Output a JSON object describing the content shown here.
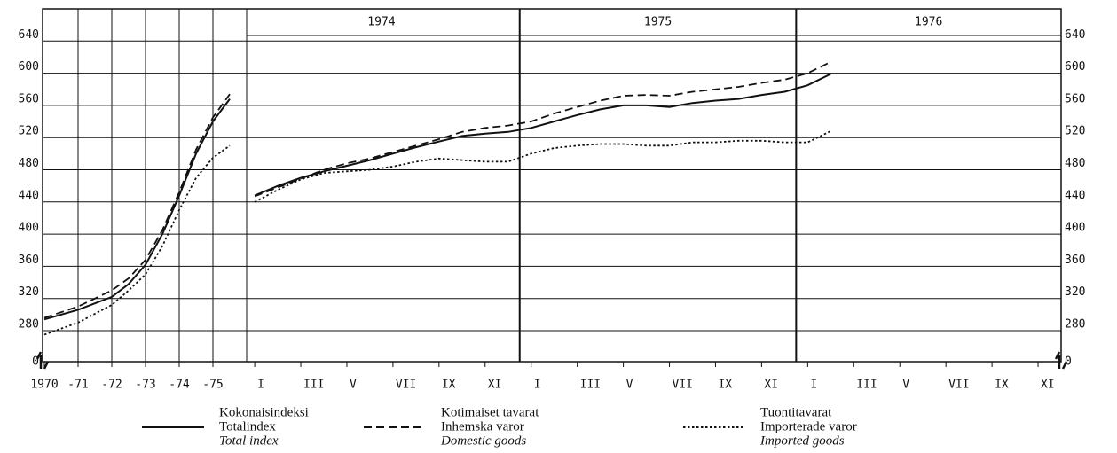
{
  "legend": [
    [
      "Kokonaisindeksi",
      "Totalindex",
      "Total index"
    ],
    [
      "Kotimaiset tavarat",
      "Inhemska varor",
      "Domestic goods"
    ],
    [
      "Tuontitavarat",
      "Importerade varor",
      "Imported goods"
    ]
  ],
  "chart_data": [
    {
      "type": "line",
      "x": [
        1970,
        1971,
        1972,
        1972.5,
        1973,
        1973.5,
        1974,
        1974.5,
        1975,
        1975.5
      ],
      "xlim": [
        1970,
        1976
      ],
      "xticks": [
        {
          "value": 1970,
          "label": "1970"
        },
        {
          "value": 1971,
          "label": "-71"
        },
        {
          "value": 1972,
          "label": "-72"
        },
        {
          "value": 1973,
          "label": "-73"
        },
        {
          "value": 1974,
          "label": "-74"
        },
        {
          "value": 1975,
          "label": "-75"
        }
      ],
      "ylim": [
        280,
        680
      ],
      "yticks": [
        280,
        320,
        360,
        400,
        440,
        480,
        520,
        560,
        600,
        640
      ],
      "ybreak": 0,
      "series": [
        {
          "style": "solid",
          "color": "#111",
          "values": [
            294,
            306,
            322,
            338,
            362,
            400,
            448,
            500,
            540,
            568
          ]
        },
        {
          "style": "dashed",
          "color": "#111",
          "values": [
            296,
            310,
            330,
            345,
            368,
            405,
            452,
            505,
            545,
            574
          ]
        },
        {
          "style": "dotted",
          "color": "#111",
          "values": [
            275,
            290,
            312,
            330,
            350,
            385,
            430,
            470,
            495,
            510
          ]
        }
      ]
    },
    {
      "type": "line",
      "year_labels": [
        "1974",
        "1975",
        "1976"
      ],
      "x": [
        1,
        2,
        3,
        4,
        5,
        6,
        7,
        8,
        9,
        10,
        11,
        12,
        13,
        14,
        15,
        16,
        17,
        18,
        19,
        20,
        21,
        22,
        23,
        24,
        25,
        26
      ],
      "xlim": [
        0.65,
        36
      ],
      "xticks": [
        {
          "value": 1,
          "label": "I"
        },
        {
          "value": 3,
          "label": "III"
        },
        {
          "value": 5,
          "label": "V"
        },
        {
          "value": 7,
          "label": "VII"
        },
        {
          "value": 9,
          "label": "IX"
        },
        {
          "value": 11,
          "label": "XI"
        },
        {
          "value": 13,
          "label": "I"
        },
        {
          "value": 15,
          "label": "III"
        },
        {
          "value": 17,
          "label": "V"
        },
        {
          "value": 19,
          "label": "VII"
        },
        {
          "value": 21,
          "label": "IX"
        },
        {
          "value": 23,
          "label": "XI"
        },
        {
          "value": 25,
          "label": "I"
        },
        {
          "value": 27,
          "label": "III"
        },
        {
          "value": 29,
          "label": "V"
        },
        {
          "value": 31,
          "label": "VII"
        },
        {
          "value": 33,
          "label": "IX"
        },
        {
          "value": 35,
          "label": "XI"
        }
      ],
      "ylim": [
        280,
        680
      ],
      "yticks": [
        280,
        320,
        360,
        400,
        440,
        480,
        520,
        560,
        600,
        640
      ],
      "ybreak": 0,
      "series": [
        {
          "style": "solid",
          "color": "#111",
          "values": [
            448,
            460,
            470,
            478,
            485,
            492,
            500,
            508,
            515,
            522,
            525,
            527,
            532,
            540,
            548,
            555,
            560,
            560,
            558,
            563,
            566,
            568,
            573,
            577,
            585,
            599
          ]
        },
        {
          "style": "dashed",
          "color": "#111",
          "values": [
            447,
            458,
            469,
            480,
            488,
            494,
            502,
            510,
            518,
            527,
            532,
            535,
            540,
            550,
            558,
            566,
            572,
            573,
            572,
            577,
            580,
            583,
            588,
            592,
            600,
            614
          ]
        },
        {
          "style": "dotted",
          "color": "#111",
          "values": [
            440,
            455,
            468,
            476,
            478,
            480,
            484,
            490,
            494,
            492,
            490,
            490,
            500,
            507,
            510,
            512,
            512,
            510,
            510,
            514,
            514,
            516,
            516,
            514,
            514,
            528
          ]
        }
      ]
    }
  ]
}
